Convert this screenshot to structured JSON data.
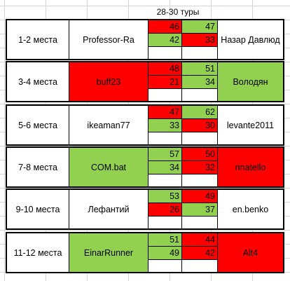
{
  "sheet": {
    "header": "28-30 туры"
  },
  "colors": {
    "red": "#ff0000",
    "green": "#92d050",
    "white": "#ffffff"
  },
  "matches": [
    {
      "place": "1-2 места",
      "home": "Professor-Ra",
      "home_color": "white",
      "away": "Назар Давлюд",
      "away_color": "white",
      "scores": [
        {
          "h": "46",
          "hc": "red",
          "a": "47",
          "ac": "green"
        },
        {
          "h": "42",
          "hc": "green",
          "a": "33",
          "ac": "red"
        }
      ]
    },
    {
      "place": "3-4 места",
      "home": "buff23",
      "home_color": "red",
      "away": "Володян",
      "away_color": "green",
      "scores": [
        {
          "h": "48",
          "hc": "red",
          "a": "51",
          "ac": "green"
        },
        {
          "h": "21",
          "hc": "red",
          "a": "34",
          "ac": "green"
        }
      ]
    },
    {
      "place": "5-6 места",
      "home": "ikeaman77",
      "home_color": "white",
      "away": "levante2011",
      "away_color": "white",
      "scores": [
        {
          "h": "47",
          "hc": "red",
          "a": "62",
          "ac": "green"
        },
        {
          "h": "33",
          "hc": "green",
          "a": "30",
          "ac": "red"
        }
      ]
    },
    {
      "place": "7-8 места",
      "home": "COM.bat",
      "home_color": "green",
      "away": "rinatello",
      "away_color": "red",
      "scores": [
        {
          "h": "57",
          "hc": "green",
          "a": "50",
          "ac": "red"
        },
        {
          "h": "34",
          "hc": "green",
          "a": "32",
          "ac": "red"
        }
      ]
    },
    {
      "place": "9-10 места",
      "home": "Лефантий",
      "home_color": "white",
      "away": "en.benko",
      "away_color": "white",
      "scores": [
        {
          "h": "53",
          "hc": "green",
          "a": "49",
          "ac": "red"
        },
        {
          "h": "26",
          "hc": "red",
          "a": "37",
          "ac": "green"
        }
      ]
    },
    {
      "place": "11-12 места",
      "home": "EinarRunner",
      "home_color": "green",
      "away": "Alt4",
      "away_color": "red",
      "scores": [
        {
          "h": "51",
          "hc": "green",
          "a": "44",
          "ac": "red"
        },
        {
          "h": "49",
          "hc": "green",
          "a": "42",
          "ac": "red"
        }
      ]
    }
  ]
}
